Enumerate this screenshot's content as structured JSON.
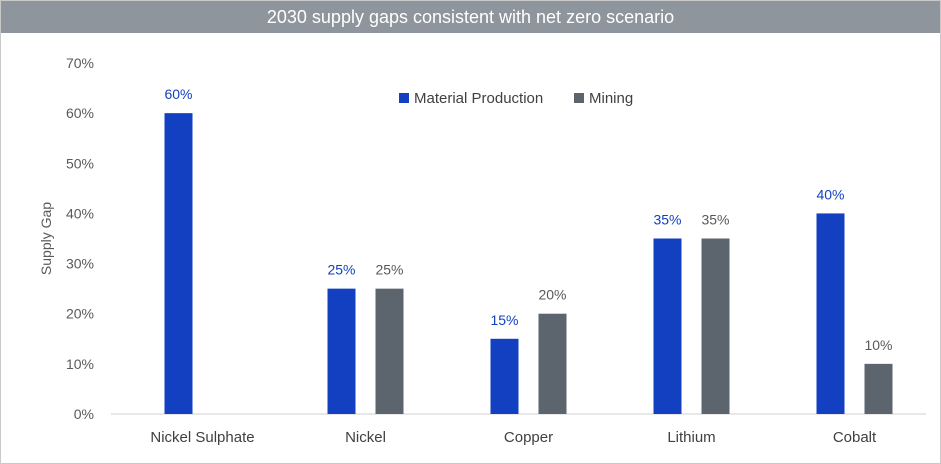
{
  "chart_data": {
    "type": "bar",
    "title": "2030 supply gaps consistent with net zero scenario",
    "xlabel": "",
    "ylabel": "Supply Gap",
    "ylim": [
      0,
      70
    ],
    "yticks": [
      0,
      10,
      20,
      30,
      40,
      50,
      60,
      70
    ],
    "ytick_labels": [
      "0%",
      "10%",
      "20%",
      "30%",
      "40%",
      "50%",
      "60%",
      "70%"
    ],
    "categories": [
      "Nickel Sulphate",
      "Nickel",
      "Copper",
      "Lithium",
      "Cobalt"
    ],
    "series": [
      {
        "name": "Material Production",
        "color": "#1240c0",
        "values": [
          60,
          25,
          15,
          35,
          40
        ],
        "labels": [
          "60%",
          "25%",
          "15%",
          "35%",
          "40%"
        ]
      },
      {
        "name": "Mining",
        "color": "#5c656d",
        "values": [
          null,
          25,
          20,
          35,
          10
        ],
        "labels": [
          "",
          "25%",
          "20%",
          "35%",
          "10%"
        ]
      }
    ],
    "grid": false,
    "legend_position": "top-center"
  }
}
